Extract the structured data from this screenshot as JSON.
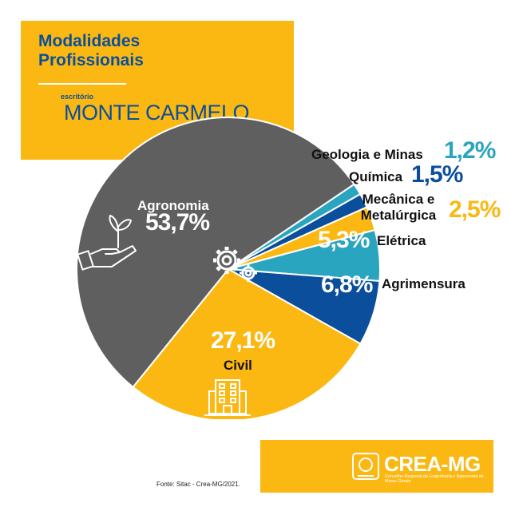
{
  "header": {
    "title_line1": "Modalidades",
    "title_line2": "Profissionais",
    "office_label": "escritório",
    "office_name": "MONTE CARMELO"
  },
  "colors": {
    "yellow": "#fbb812",
    "gray": "#5f5f5f",
    "teal": "#2aa5bf",
    "navy": "#0b4e9b",
    "white": "#ffffff"
  },
  "chart_data": {
    "type": "pie",
    "start_angle_deg": 56,
    "direction": "clockwise",
    "slices": [
      {
        "label": "Geologia e Minas",
        "value": 1.2,
        "display": "1,2%",
        "color": "#2aa5bf"
      },
      {
        "label": "Química",
        "value": 1.5,
        "display": "1,5%",
        "color": "#0b4e9b"
      },
      {
        "label": "Mecânica e Metalúrgica",
        "value": 2.5,
        "display": "2,5%",
        "color": "#fbb812"
      },
      {
        "label": "Elétrica",
        "value": 5.3,
        "display": "5,3%",
        "color": "#2aa5bf"
      },
      {
        "label": "Agrimensura",
        "value": 6.8,
        "display": "6,8%",
        "color": "#0b4e9b"
      },
      {
        "label": "Civil",
        "value": 27.1,
        "display": "27,1%",
        "color": "#fbb812"
      },
      {
        "label": "Agronomia",
        "value": 53.7,
        "display": "53,7%",
        "color": "#5f5f5f"
      }
    ],
    "icons": [
      "gears-icon",
      "hand-plant-icon",
      "building-icon"
    ]
  },
  "footer": {
    "source": "Fonte: Sitac - Crea-MG/2021.",
    "logo_title": "CREA-MG",
    "logo_subtitle": "Conselho Regional de Engenharia e Agronomia de Minas Gerais"
  }
}
